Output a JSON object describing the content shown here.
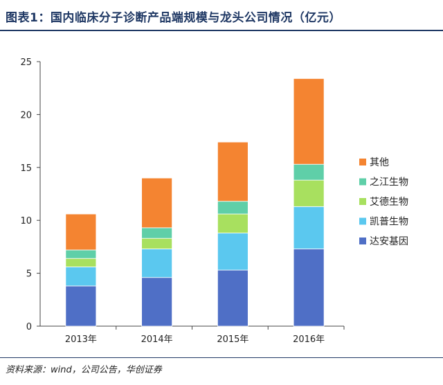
{
  "header": {
    "title": "图表1：国内临床分子诊断产品端规模与龙头公司情况（亿元）"
  },
  "footer": {
    "source": "资料来源：wind，公司公告，华创证券"
  },
  "chart_data": {
    "type": "bar",
    "stacked": true,
    "categories": [
      "2013年",
      "2014年",
      "2015年",
      "2016年"
    ],
    "y_ticks": [
      "0",
      "5",
      "10",
      "15",
      "20",
      "25"
    ],
    "ylim": [
      0,
      25
    ],
    "grid": false,
    "legend_position": "right",
    "series": [
      {
        "name": "达安基因",
        "color": "#4f6fc6",
        "values": [
          3.8,
          4.6,
          5.3,
          7.3
        ]
      },
      {
        "name": "凯普生物",
        "color": "#5bc8ef",
        "values": [
          1.8,
          2.7,
          3.5,
          4.0
        ]
      },
      {
        "name": "艾德生物",
        "color": "#a8e05f",
        "values": [
          0.8,
          1.0,
          1.8,
          2.5
        ]
      },
      {
        "name": "之江生物",
        "color": "#5fcfa8",
        "values": [
          0.8,
          1.0,
          1.2,
          1.5
        ]
      },
      {
        "name": "其他",
        "color": "#f48431",
        "values": [
          3.4,
          4.7,
          5.6,
          8.1
        ]
      }
    ]
  }
}
